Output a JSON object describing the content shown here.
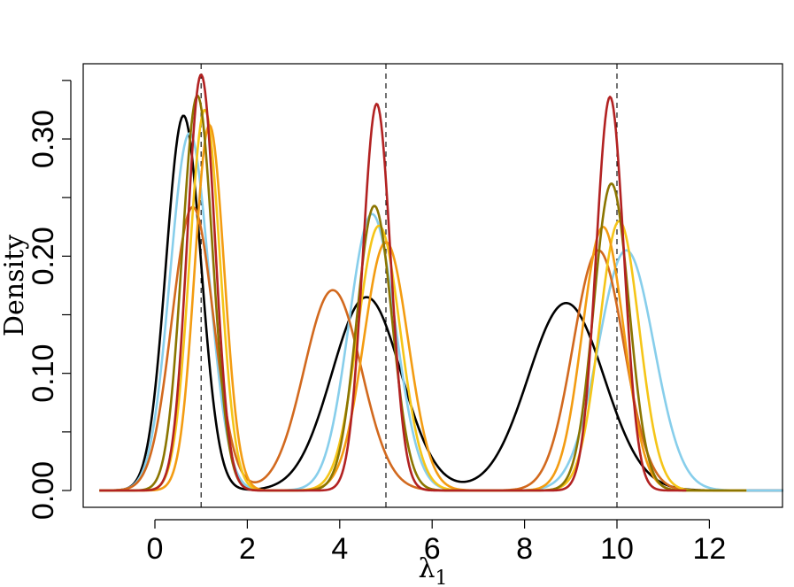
{
  "chart_data": {
    "type": "line",
    "xlabel": "λ",
    "xlabel_subscript": "1",
    "ylabel": "Density",
    "xlim": [
      -1.5,
      13.7
    ],
    "ylim": [
      -0.014,
      0.365
    ],
    "x_ticks": [
      0,
      2,
      4,
      6,
      8,
      10,
      12
    ],
    "x_tick_labels": [
      "0",
      "2",
      "4",
      "6",
      "8",
      "10",
      "12"
    ],
    "y_major_ticks": [
      0.0,
      0.1,
      0.2,
      0.3
    ],
    "y_tick_labels": [
      "0.00",
      "0.10",
      "0.20",
      "0.30"
    ],
    "y_minor_ticks": [
      0.05,
      0.15,
      0.25,
      0.35
    ],
    "grid": false,
    "reference_lines": [
      1,
      5,
      10
    ],
    "series": [
      {
        "color": "#000000",
        "support": [
          -1.2,
          13.6
        ],
        "peaks": [
          {
            "x": 0.62,
            "y": 0.32,
            "sd": 0.38
          },
          {
            "x": 4.58,
            "y": 0.165,
            "sd": 0.75
          },
          {
            "x": 8.9,
            "y": 0.16,
            "sd": 0.82
          }
        ]
      },
      {
        "color": "#87CEEB",
        "support": [
          -1.2,
          13.6
        ],
        "peaks": [
          {
            "x": 0.75,
            "y": 0.305,
            "sd": 0.42
          },
          {
            "x": 4.7,
            "y": 0.236,
            "sd": 0.5
          },
          {
            "x": 10.2,
            "y": 0.205,
            "sd": 0.6
          }
        ]
      },
      {
        "color": "#D2691E",
        "support": [
          -1.2,
          11.5
        ],
        "peaks": [
          {
            "x": 0.82,
            "y": 0.242,
            "sd": 0.45
          },
          {
            "x": 3.85,
            "y": 0.171,
            "sd": 0.62
          },
          {
            "x": 9.6,
            "y": 0.205,
            "sd": 0.55
          }
        ]
      },
      {
        "color": "#F5C518",
        "support": [
          -1.2,
          12.8
        ],
        "peaks": [
          {
            "x": 1.08,
            "y": 0.325,
            "sd": 0.33
          },
          {
            "x": 4.85,
            "y": 0.226,
            "sd": 0.46
          },
          {
            "x": 10.05,
            "y": 0.23,
            "sd": 0.43
          }
        ]
      },
      {
        "color": "#F39C12",
        "support": [
          -1.2,
          12.8
        ],
        "peaks": [
          {
            "x": 1.18,
            "y": 0.312,
            "sd": 0.32
          },
          {
            "x": 5.0,
            "y": 0.212,
            "sd": 0.48
          },
          {
            "x": 9.7,
            "y": 0.225,
            "sd": 0.45
          }
        ]
      },
      {
        "color": "#8B7500",
        "support": [
          -1.2,
          12.8
        ],
        "peaks": [
          {
            "x": 0.92,
            "y": 0.337,
            "sd": 0.33
          },
          {
            "x": 4.75,
            "y": 0.243,
            "sd": 0.38
          },
          {
            "x": 9.88,
            "y": 0.262,
            "sd": 0.38
          }
        ]
      },
      {
        "color": "#B22222",
        "support": [
          -1.2,
          11.5
        ],
        "peaks": [
          {
            "x": 1.0,
            "y": 0.355,
            "sd": 0.3
          },
          {
            "x": 4.8,
            "y": 0.33,
            "sd": 0.3
          },
          {
            "x": 9.85,
            "y": 0.336,
            "sd": 0.3
          }
        ]
      }
    ]
  }
}
